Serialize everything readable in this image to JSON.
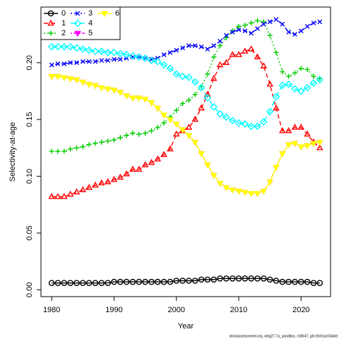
{
  "chart_data": {
    "type": "line",
    "xlabel": "Year",
    "ylabel": "Selectivity-at-age",
    "footnote": "stockassessment.org, whg27.7a_sandbox, r18647, git:c9c61ac53a0d",
    "x": [
      1980,
      1981,
      1982,
      1983,
      1984,
      1985,
      1986,
      1987,
      1988,
      1989,
      1990,
      1991,
      1992,
      1993,
      1994,
      1995,
      1996,
      1997,
      1998,
      1999,
      2000,
      2001,
      2002,
      2003,
      2004,
      2005,
      2006,
      2007,
      2008,
      2009,
      2010,
      2011,
      2012,
      2013,
      2014,
      2015,
      2016,
      2017,
      2018,
      2019,
      2020,
      2021,
      2022,
      2023
    ],
    "xlim": [
      1978.28,
      2024.72
    ],
    "xticks": [
      1980,
      1990,
      2000,
      2010,
      2020
    ],
    "ylim": [
      -0.006,
      0.249
    ],
    "yticks": [
      {
        "value": 0,
        "label": "0.00"
      },
      {
        "value": 0.05,
        "label": "0.05"
      },
      {
        "value": 0.1,
        "label": "0.10"
      },
      {
        "value": 0.15,
        "label": "0.15"
      },
      {
        "value": 0.2,
        "label": "0.20"
      }
    ],
    "legend": "top-left",
    "series": [
      {
        "name": "0",
        "color": "#000000",
        "marker": "circle",
        "dash": "none",
        "values": [
          0.006,
          0.006,
          0.006,
          0.006,
          0.006,
          0.006,
          0.006,
          0.006,
          0.006,
          0.006,
          0.007,
          0.007,
          0.007,
          0.007,
          0.007,
          0.007,
          0.007,
          0.007,
          0.007,
          0.007,
          0.008,
          0.008,
          0.008,
          0.008,
          0.009,
          0.009,
          0.009,
          0.01,
          0.01,
          0.01,
          0.01,
          0.01,
          0.01,
          0.01,
          0.01,
          0.009,
          0.008,
          0.007,
          0.007,
          0.007,
          0.007,
          0.007,
          0.006,
          0.006
        ]
      },
      {
        "name": "1",
        "color": "#ff0000",
        "marker": "triangle",
        "dash": "6 4",
        "values": [
          0.082,
          0.082,
          0.082,
          0.084,
          0.086,
          0.088,
          0.09,
          0.092,
          0.094,
          0.095,
          0.097,
          0.099,
          0.102,
          0.106,
          0.106,
          0.11,
          0.112,
          0.115,
          0.119,
          0.124,
          0.137,
          0.14,
          0.143,
          0.15,
          0.16,
          0.172,
          0.186,
          0.198,
          0.2,
          0.207,
          0.207,
          0.21,
          0.212,
          0.205,
          0.197,
          0.181,
          0.16,
          0.14,
          0.14,
          0.143,
          0.143,
          0.137,
          0.13,
          0.125
        ]
      },
      {
        "name": "2",
        "color": "#00cd00",
        "marker": "plus",
        "dash": "2 3",
        "values": [
          0.122,
          0.122,
          0.122,
          0.124,
          0.125,
          0.126,
          0.128,
          0.129,
          0.13,
          0.131,
          0.132,
          0.134,
          0.136,
          0.138,
          0.137,
          0.138,
          0.14,
          0.143,
          0.147,
          0.152,
          0.158,
          0.164,
          0.167,
          0.172,
          0.179,
          0.19,
          0.205,
          0.215,
          0.222,
          0.228,
          0.232,
          0.233,
          0.235,
          0.237,
          0.236,
          0.224,
          0.209,
          0.192,
          0.188,
          0.191,
          0.195,
          0.194,
          0.188,
          0.186
        ]
      },
      {
        "name": "3",
        "color": "#0000ff",
        "marker": "cross",
        "dash": "2 3 6 3",
        "values": [
          0.198,
          0.199,
          0.199,
          0.2,
          0.2,
          0.201,
          0.201,
          0.201,
          0.202,
          0.202,
          0.203,
          0.203,
          0.204,
          0.205,
          0.205,
          0.204,
          0.203,
          0.204,
          0.207,
          0.209,
          0.211,
          0.213,
          0.215,
          0.215,
          0.214,
          0.212,
          0.215,
          0.219,
          0.224,
          0.227,
          0.229,
          0.228,
          0.226,
          0.23,
          0.234,
          0.236,
          0.238,
          0.234,
          0.227,
          0.225,
          0.228,
          0.232,
          0.235,
          0.236
        ]
      },
      {
        "name": "4",
        "color": "#00ffff",
        "marker": "diamond",
        "dash": "9 4",
        "values": [
          0.214,
          0.214,
          0.214,
          0.214,
          0.213,
          0.212,
          0.211,
          0.21,
          0.21,
          0.209,
          0.209,
          0.208,
          0.207,
          0.206,
          0.205,
          0.204,
          0.202,
          0.201,
          0.198,
          0.195,
          0.19,
          0.188,
          0.187,
          0.183,
          0.178,
          0.169,
          0.161,
          0.155,
          0.152,
          0.149,
          0.147,
          0.146,
          0.144,
          0.144,
          0.148,
          0.157,
          0.17,
          0.18,
          0.181,
          0.177,
          0.175,
          0.178,
          0.182,
          0.185
        ]
      },
      {
        "name": "5",
        "color": "#ff00ff",
        "marker": "triangle-down",
        "dash": "2 2 6 2",
        "values": [
          0.188,
          0.188,
          0.187,
          0.186,
          0.185,
          0.183,
          0.181,
          0.18,
          0.178,
          0.177,
          0.176,
          0.174,
          0.171,
          0.169,
          0.169,
          0.168,
          0.165,
          0.16,
          0.154,
          0.15,
          0.146,
          0.141,
          0.136,
          0.13,
          0.12,
          0.11,
          0.101,
          0.094,
          0.09,
          0.088,
          0.087,
          0.086,
          0.085,
          0.085,
          0.087,
          0.095,
          0.108,
          0.12,
          0.128,
          0.129,
          0.126,
          0.127,
          0.129,
          0.13
        ]
      },
      {
        "name": "6",
        "color": "#ffff00",
        "marker": "triangle-down",
        "dash": "none",
        "values": [
          0.188,
          0.188,
          0.187,
          0.186,
          0.185,
          0.183,
          0.181,
          0.18,
          0.178,
          0.177,
          0.176,
          0.174,
          0.171,
          0.169,
          0.169,
          0.168,
          0.165,
          0.16,
          0.154,
          0.15,
          0.146,
          0.141,
          0.136,
          0.13,
          0.12,
          0.11,
          0.101,
          0.094,
          0.09,
          0.088,
          0.087,
          0.086,
          0.085,
          0.085,
          0.087,
          0.095,
          0.108,
          0.12,
          0.128,
          0.129,
          0.126,
          0.127,
          0.129,
          0.13
        ]
      }
    ]
  }
}
